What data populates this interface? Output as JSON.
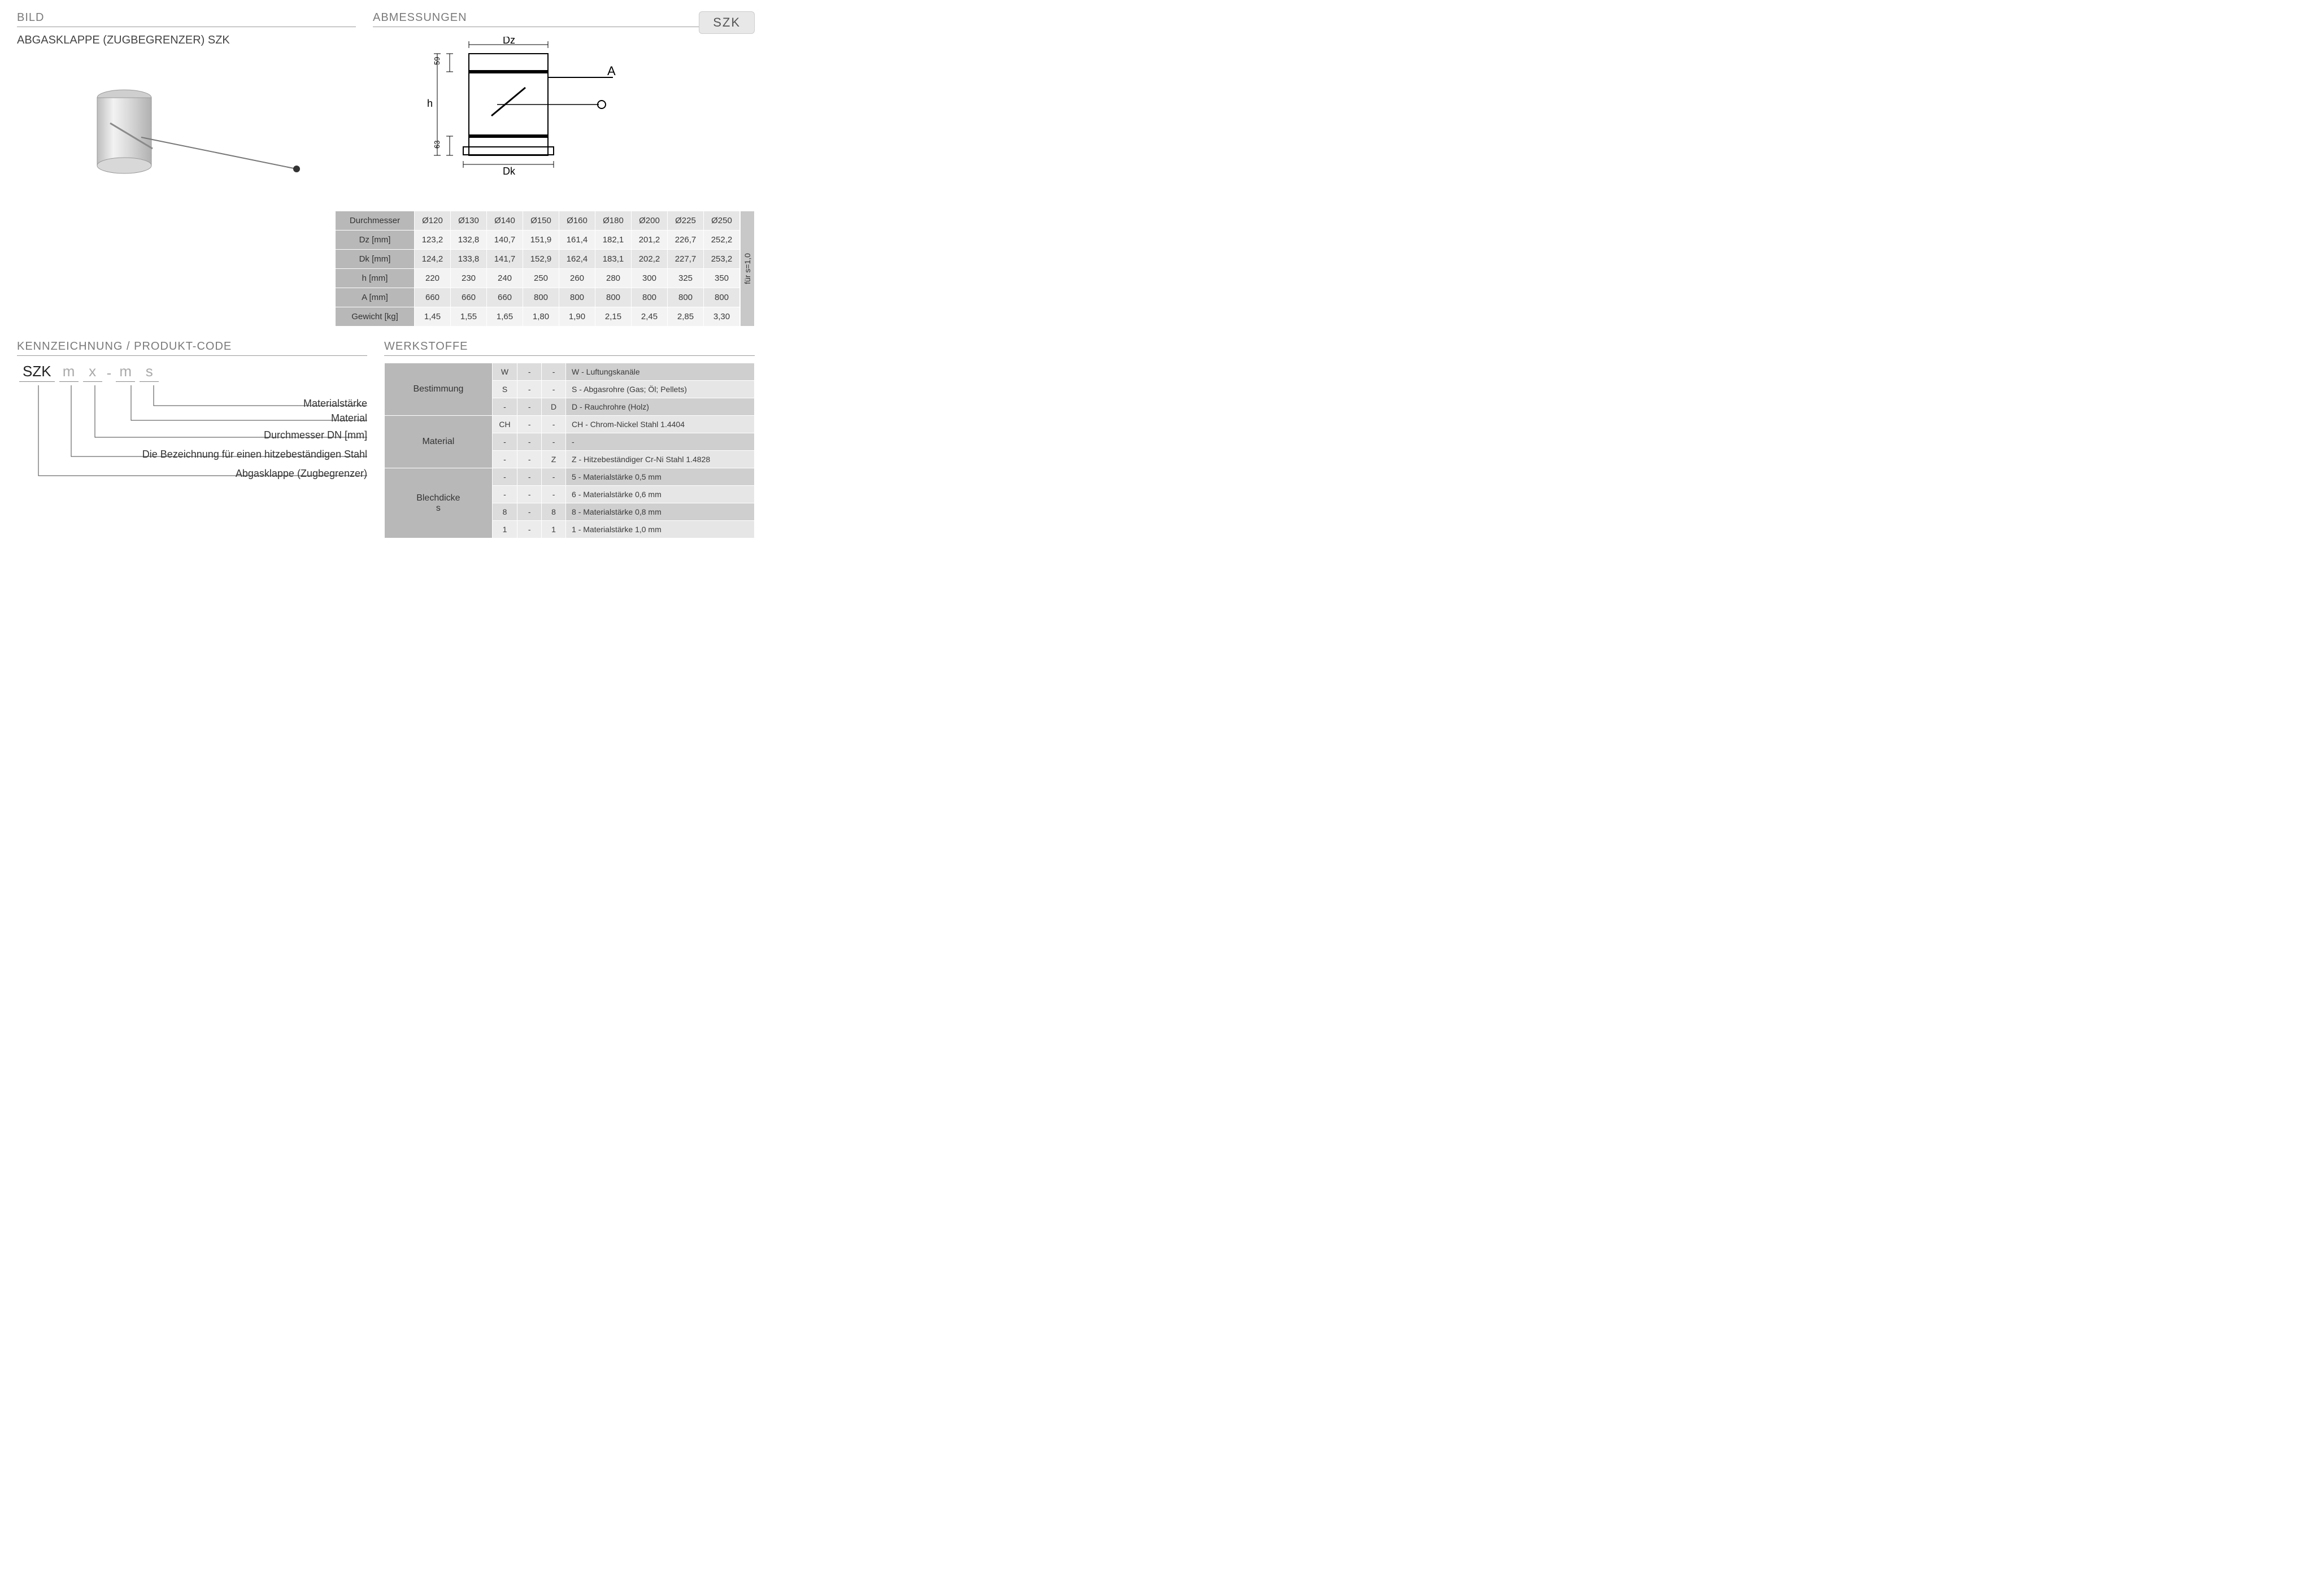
{
  "headers": {
    "bild": "BILD",
    "abmessungen": "ABMESSUNGEN",
    "kennzeichnung": "KENNZEICHNUNG  / PRODUKT-CODE",
    "werkstoffe": "WERKSTOFFE"
  },
  "product_title": "ABGASKLAPPE (ZUGBEGRENZER)  SZK",
  "badge": "SZK",
  "diagram": {
    "labels": {
      "Dz": "Dz",
      "Dk": "Dk",
      "h": "h",
      "A": "A",
      "top59": "59",
      "bot63": "63"
    }
  },
  "dim_table": {
    "row_labels": [
      "Durchmesser",
      "Dz [mm]",
      "Dk [mm]",
      "h [mm]",
      "A [mm]",
      "Gewicht [kg]"
    ],
    "cols": [
      "Ø120",
      "Ø130",
      "Ø140",
      "Ø150",
      "Ø160",
      "Ø180",
      "Ø200",
      "Ø225",
      "Ø250"
    ],
    "rows": [
      [
        "123,2",
        "132,8",
        "140,7",
        "151,9",
        "161,4",
        "182,1",
        "201,2",
        "226,7",
        "252,2"
      ],
      [
        "124,2",
        "133,8",
        "141,7",
        "152,9",
        "162,4",
        "183,1",
        "202,2",
        "227,7",
        "253,2"
      ],
      [
        "220",
        "230",
        "240",
        "250",
        "260",
        "280",
        "300",
        "325",
        "350"
      ],
      [
        "660",
        "660",
        "660",
        "800",
        "800",
        "800",
        "800",
        "800",
        "800"
      ],
      [
        "1,45",
        "1,55",
        "1,65",
        "1,80",
        "1,90",
        "2,15",
        "2,45",
        "2,85",
        "3,30"
      ]
    ],
    "side_note": "für s=1,0"
  },
  "code": {
    "segments": [
      "SZK",
      "m",
      "x",
      "-",
      "m",
      "s"
    ],
    "labels": [
      "Materialstärke",
      "Material",
      "Durchmesser DN [mm]",
      "Die Bezeichnung für einen hitzebeständigen Stahl",
      "Abgasklappe (Zugbegrenzer)"
    ]
  },
  "werkstoffe": {
    "groups": [
      {
        "name": "Bestimmung",
        "rows": [
          {
            "c": [
              "W",
              "-",
              "-"
            ],
            "desc": "W - Luftungskanäle"
          },
          {
            "c": [
              "S",
              "-",
              "-"
            ],
            "desc": "S  - Abgasrohre (Gas; Öl; Pellets)"
          },
          {
            "c": [
              "-",
              "-",
              "D"
            ],
            "desc": "D  - Rauchrohre (Holz)"
          }
        ]
      },
      {
        "name": "Material",
        "rows": [
          {
            "c": [
              "CH",
              "-",
              "-"
            ],
            "desc": "CH - Chrom-Nickel Stahl  1.4404"
          },
          {
            "c": [
              "-",
              "-",
              "-"
            ],
            "desc": "-"
          },
          {
            "c": [
              "-",
              "-",
              "Z"
            ],
            "desc": "Z - Hitzebeständiger Cr-Ni Stahl 1.4828"
          }
        ]
      },
      {
        "name": "Blechdicke\ns",
        "rows": [
          {
            "c": [
              "-",
              "-",
              "-"
            ],
            "desc": "5 - Materialstärke 0,5 mm"
          },
          {
            "c": [
              "-",
              "-",
              "-"
            ],
            "desc": "6 - Materialstärke 0,6 mm"
          },
          {
            "c": [
              "8",
              "-",
              "8"
            ],
            "desc": "8 - Materialstärke 0,8 mm"
          },
          {
            "c": [
              "1",
              "-",
              "1"
            ],
            "desc": "1  - Materialstärke 1,0 mm"
          }
        ]
      }
    ]
  },
  "colors": {
    "header_text": "#7a7a7a",
    "rule": "#999999",
    "cell_dark": "#b8b8b8",
    "cell_mid": "#dcdcdc",
    "cell_light": "#ececec",
    "desc_dark": "#cfcfcf",
    "desc_light": "#e6e6e6"
  }
}
